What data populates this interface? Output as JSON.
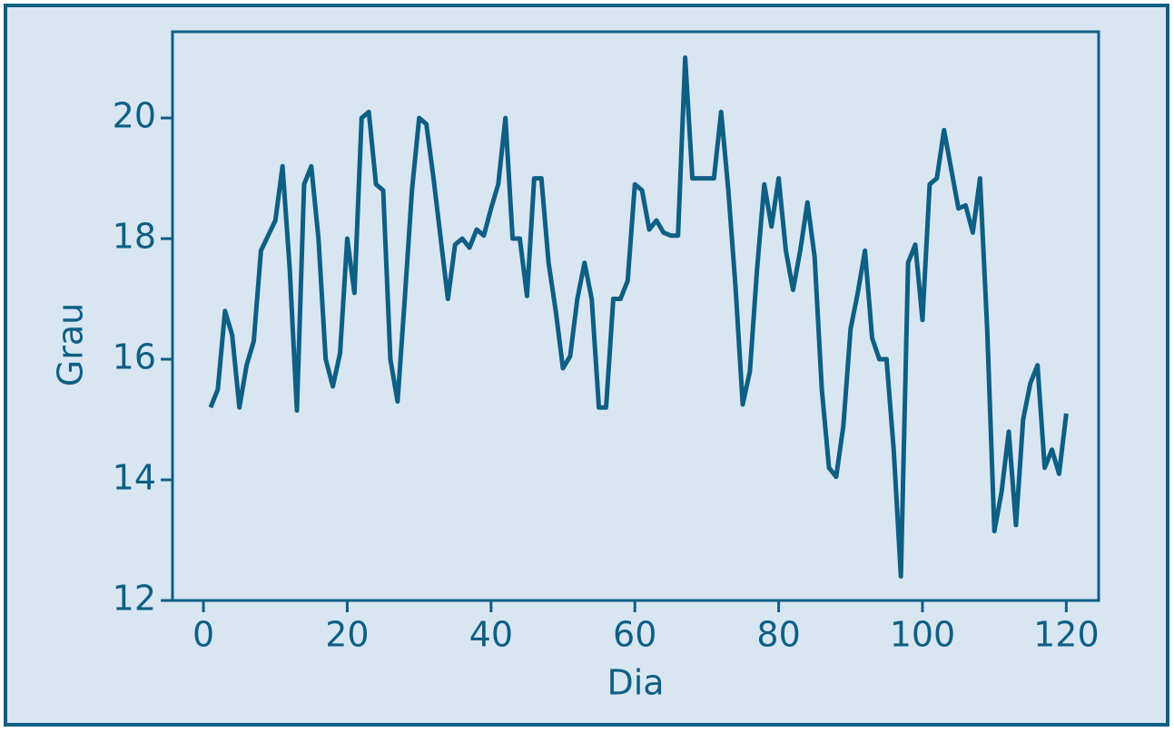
{
  "chart_data": {
    "type": "line",
    "x_label": "Dia",
    "y_label": "Grau",
    "x": [
      1,
      2,
      3,
      4,
      5,
      6,
      7,
      8,
      9,
      10,
      11,
      12,
      13,
      14,
      15,
      16,
      17,
      18,
      19,
      20,
      21,
      22,
      23,
      24,
      25,
      26,
      27,
      28,
      29,
      30,
      31,
      32,
      33,
      34,
      35,
      36,
      37,
      38,
      39,
      40,
      41,
      42,
      43,
      44,
      45,
      46,
      47,
      48,
      49,
      50,
      51,
      52,
      53,
      54,
      55,
      56,
      57,
      58,
      59,
      60,
      61,
      62,
      63,
      64,
      65,
      66,
      67,
      68,
      69,
      70,
      71,
      72,
      73,
      74,
      75,
      76,
      77,
      78,
      79,
      80,
      81,
      82,
      83,
      84,
      85,
      86,
      87,
      88,
      89,
      90,
      91,
      92,
      93,
      94,
      95,
      96,
      97,
      98,
      99,
      100,
      101,
      102,
      103,
      104,
      105,
      106,
      107,
      108,
      109,
      110,
      111,
      112,
      113,
      114,
      115,
      116,
      117,
      118,
      119,
      120
    ],
    "series": [
      {
        "name": "Grau",
        "color": "#0e5f84",
        "values": [
          15.2,
          15.5,
          16.8,
          16.4,
          15.2,
          15.9,
          16.3,
          17.8,
          18.05,
          18.3,
          19.2,
          17.5,
          15.15,
          18.9,
          19.2,
          18.0,
          16.0,
          15.55,
          16.1,
          18.0,
          17.1,
          20.0,
          20.1,
          18.9,
          18.8,
          16.0,
          15.3,
          17.0,
          18.8,
          20.0,
          19.9,
          19.0,
          18.0,
          17.0,
          17.9,
          18.0,
          17.85,
          18.15,
          18.05,
          18.5,
          18.9,
          20.0,
          18.0,
          18.0,
          17.05,
          19.0,
          19.0,
          17.6,
          16.8,
          15.85,
          16.05,
          17.0,
          17.6,
          17.0,
          15.2,
          15.2,
          17.0,
          17.0,
          17.3,
          18.9,
          18.8,
          18.15,
          18.3,
          18.1,
          18.05,
          18.05,
          21.0,
          19.0,
          19.0,
          19.0,
          19.0,
          20.1,
          18.8,
          17.2,
          15.25,
          15.8,
          17.5,
          18.9,
          18.2,
          19.0,
          17.8,
          17.15,
          17.8,
          18.6,
          17.7,
          15.5,
          14.2,
          14.05,
          14.9,
          16.5,
          17.1,
          17.8,
          16.35,
          16.0,
          16.0,
          14.5,
          12.4,
          17.6,
          17.9,
          16.65,
          18.9,
          19.0,
          19.8,
          19.15,
          18.5,
          18.55,
          18.1,
          19.0,
          16.5,
          13.15,
          13.8,
          14.8,
          13.25,
          15.0,
          15.6,
          15.9,
          14.2,
          14.5,
          14.1,
          15.1
        ]
      }
    ],
    "xlim": [
      -4.3,
      124.5
    ],
    "ylim": [
      12,
      21.43
    ],
    "xticks": [
      0,
      20,
      40,
      60,
      80,
      100,
      120
    ],
    "yticks": [
      12,
      14,
      16,
      18,
      20
    ]
  }
}
